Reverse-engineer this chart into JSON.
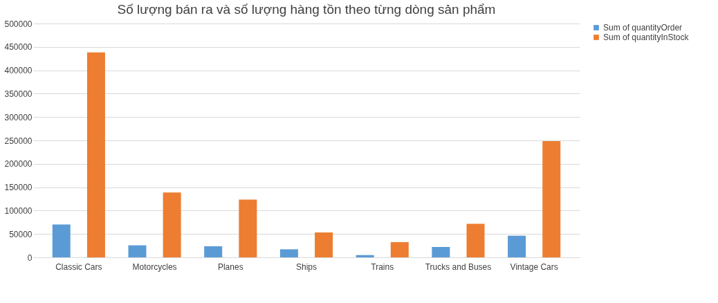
{
  "chart_data": {
    "type": "bar",
    "title": "Số lượng bán ra và số lượng hàng tồn theo từng dòng sản phẩm",
    "categories": [
      "Classic Cars",
      "Motorcycles",
      "Planes",
      "Ships",
      "Trains",
      "Trucks and Buses",
      "Vintage Cars"
    ],
    "series": [
      {
        "name": "Sum of quantityOrder",
        "color": "#5b9bd5",
        "values": [
          70300,
          25700,
          23700,
          17200,
          4900,
          22200,
          46300
        ]
      },
      {
        "name": "Sum of quantityInStock",
        "color": "#ed7d31",
        "values": [
          438200,
          138800,
          123500,
          53200,
          32500,
          71900,
          248500
        ]
      }
    ],
    "ylim": [
      0,
      500000
    ],
    "yticks": [
      0,
      50000,
      100000,
      150000,
      200000,
      250000,
      300000,
      350000,
      400000,
      450000,
      500000
    ],
    "grid": "y",
    "legend": "right"
  }
}
